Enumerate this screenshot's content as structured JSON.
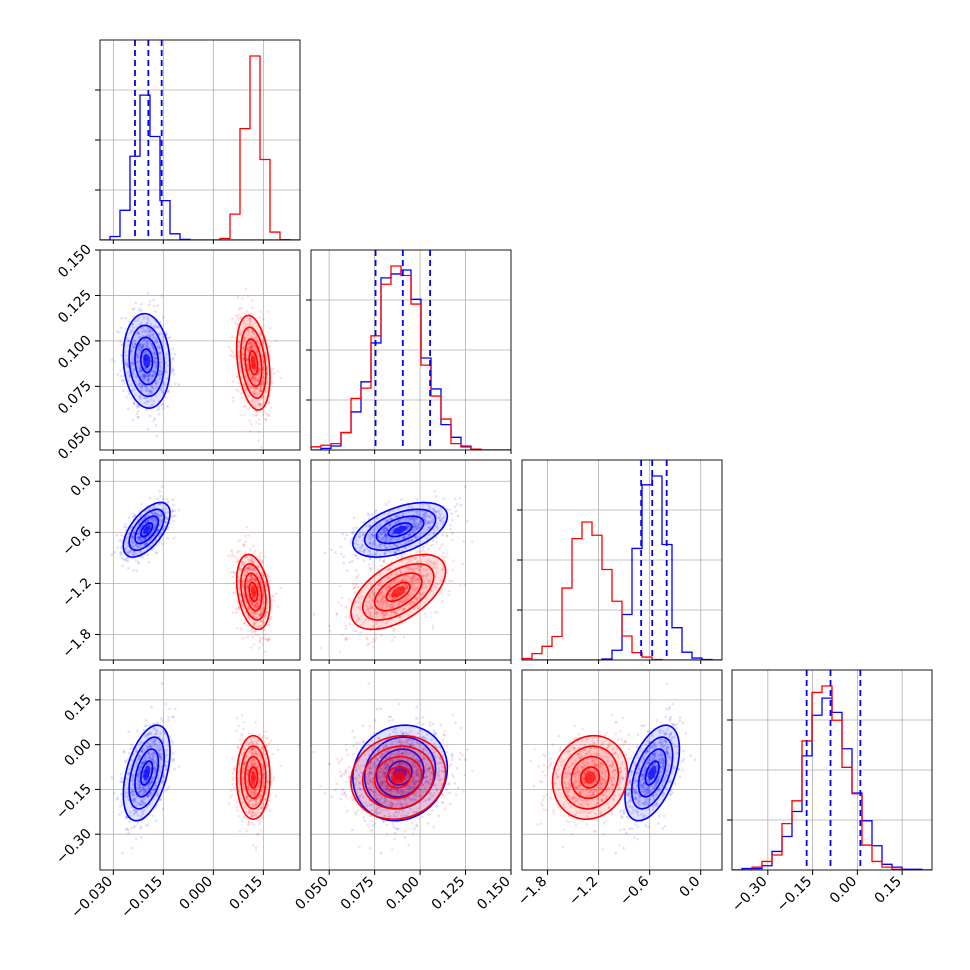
{
  "chart_data": {
    "type": "scatter",
    "title": "",
    "layout": "corner-plot-4x4-lower-triangle",
    "grid": true,
    "series": [
      {
        "color": "#0000ff",
        "means": [
          -0.02,
          0.089,
          -0.57,
          -0.095
        ],
        "sds": [
          0.0035,
          0.013,
          0.16,
          0.08
        ],
        "corr": [
          [
            1,
            -0.1,
            0.6,
            0.45
          ],
          [
            -0.1,
            1,
            0.5,
            0.1
          ],
          [
            0.6,
            0.5,
            1,
            0.5
          ],
          [
            0.45,
            0.1,
            0.5,
            1
          ]
        ]
      },
      {
        "color": "#ff0000",
        "means": [
          0.012,
          0.088,
          -1.3,
          -0.11
        ],
        "sds": [
          0.0025,
          0.013,
          0.22,
          0.07
        ],
        "corr": [
          [
            1,
            -0.3,
            -0.3,
            0
          ],
          [
            -0.3,
            1,
            0.55,
            0.1
          ],
          [
            -0.3,
            0.55,
            1,
            0.1
          ],
          [
            0,
            0.1,
            0.1,
            1
          ]
        ]
      }
    ],
    "quantile_lines": [
      [
        -0.0235,
        -0.0195,
        -0.0155
      ],
      [
        0.0755,
        0.0905,
        0.1055
      ],
      [
        -0.7,
        -0.57,
        -0.4
      ],
      [
        -0.17,
        -0.09,
        0.01
      ]
    ],
    "axes": [
      {
        "range": [
          -0.034,
          0.026
        ],
        "ticks": [
          -0.03,
          -0.015,
          0.0,
          0.015
        ],
        "tick_labels": [
          "−0.030",
          "−0.015",
          "0.000",
          "0.015"
        ]
      },
      {
        "range": [
          0.04,
          0.15
        ],
        "ticks": [
          0.05,
          0.075,
          0.1,
          0.125,
          0.15
        ],
        "tick_labels": [
          "0.050",
          "0.075",
          "0.100",
          "0.125",
          "0.150"
        ]
      },
      {
        "range": [
          -2.1,
          0.25
        ],
        "ticks": [
          -1.8,
          -1.2,
          -0.6,
          0.0
        ],
        "tick_labels": [
          "−1.8",
          "−1.2",
          "−0.6",
          "0.0"
        ]
      },
      {
        "range": [
          -0.42,
          0.25
        ],
        "ticks": [
          -0.3,
          -0.15,
          0.0,
          0.15
        ],
        "tick_labels": [
          "−0.30",
          "−0.15",
          "0.00",
          "0.15"
        ]
      }
    ]
  }
}
